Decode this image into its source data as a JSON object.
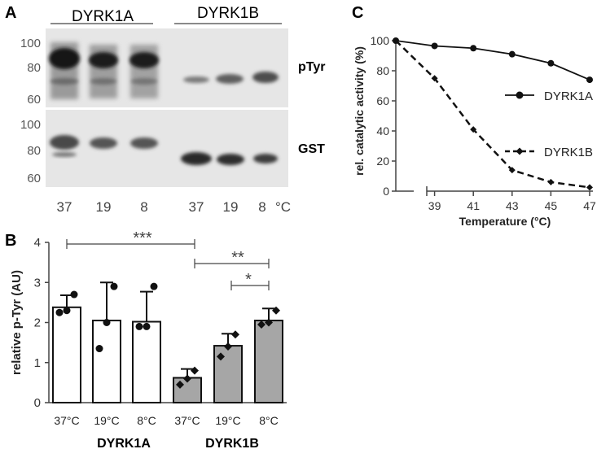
{
  "panel_a": {
    "letter": "A",
    "group_labels": [
      "DYRK1A",
      "DYRK1B"
    ],
    "mw_markers": [
      "100",
      "80",
      "60"
    ],
    "blot_labels": [
      "pTyr",
      "GST"
    ],
    "lane_labels": [
      "37",
      "19",
      "8",
      "37",
      "19",
      "8"
    ],
    "unit": "°C"
  },
  "panel_b": {
    "letter": "B",
    "group_labels": [
      "DYRK1A",
      "DYRK1B"
    ],
    "significance": [
      "***",
      "**",
      "*"
    ]
  },
  "panel_c": {
    "letter": "C"
  },
  "chart_data": [
    {
      "type": "bar",
      "panel": "B",
      "ylabel": "relative p-Tyr (AU)",
      "ylim": [
        0,
        4
      ],
      "yticks": [
        "0",
        "1",
        "2",
        "3",
        "4"
      ],
      "categories": [
        "37°C",
        "19°C",
        "8°C",
        "37°C",
        "19°C",
        "8°C"
      ],
      "groups": [
        "DYRK1A",
        "DYRK1A",
        "DYRK1A",
        "DYRK1B",
        "DYRK1B",
        "DYRK1B"
      ],
      "bar_colors": [
        "#ffffff",
        "#ffffff",
        "#ffffff",
        "#a6a6a6",
        "#a6a6a6",
        "#a6a6a6"
      ],
      "values": [
        2.38,
        2.05,
        2.02,
        0.62,
        1.42,
        2.05
      ],
      "errors": [
        0.3,
        0.95,
        0.75,
        0.22,
        0.3,
        0.3
      ],
      "points": [
        [
          2.25,
          2.3,
          2.7
        ],
        [
          1.35,
          2.0,
          2.9
        ],
        [
          1.9,
          1.9,
          2.9
        ],
        [
          0.45,
          0.6,
          0.8
        ],
        [
          1.15,
          1.4,
          1.7
        ],
        [
          1.95,
          2.0,
          2.3
        ]
      ],
      "point_markers": [
        "circle",
        "circle",
        "circle",
        "diamond",
        "diamond",
        "diamond"
      ]
    },
    {
      "type": "line",
      "panel": "C",
      "xlabel": "Temperature (°C)",
      "ylabel": "rel. catalytic activity (%)",
      "ylim": [
        0,
        100
      ],
      "yticks": [
        "0",
        "20",
        "40",
        "60",
        "80",
        "100"
      ],
      "xticks": [
        "39",
        "41",
        "43",
        "45",
        "47"
      ],
      "series": [
        {
          "name": "DYRK1A",
          "marker": "circle",
          "dash": "solid",
          "x": [
            37,
            39,
            41,
            43,
            45,
            47
          ],
          "values": [
            100,
            96.5,
            95,
            91,
            85,
            74
          ]
        },
        {
          "name": "DYRK1B",
          "marker": "diamond",
          "dash": "dashed",
          "x": [
            37,
            39,
            41,
            43,
            45,
            47
          ],
          "values": [
            100,
            75,
            41,
            14,
            6,
            2.5
          ]
        }
      ]
    }
  ]
}
